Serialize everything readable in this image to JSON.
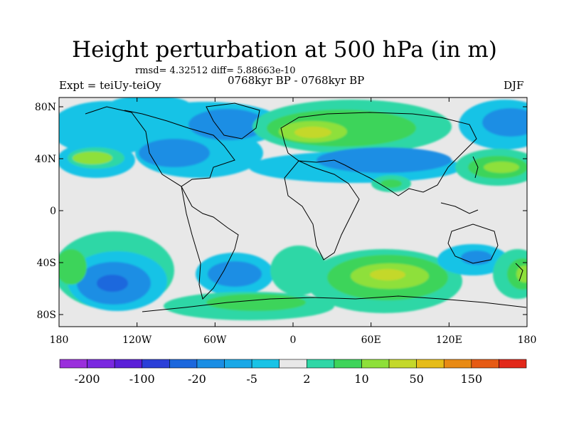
{
  "title": "Height perturbation at 500 hPa (in m)",
  "stats_line": "rmsd= 4.32512 diff= 5.88663e-10",
  "experiment": "Expt = teiUy-teiOy",
  "period": "0768kyr BP - 0768kyr BP",
  "season": "DJF",
  "y_ticks": [
    "80N",
    "40N",
    "0",
    "40S",
    "80S"
  ],
  "x_ticks": [
    "180",
    "120W",
    "60W",
    "0",
    "60E",
    "120E",
    "180"
  ],
  "colorbar": {
    "colors": [
      "#9a2fdc",
      "#7a28e0",
      "#5a1fd8",
      "#2b3fd8",
      "#1b67dd",
      "#1a8ee4",
      "#19a8e7",
      "#19c3e6",
      "#e8e8e8",
      "#2fd7a6",
      "#3ed45a",
      "#8ee03a",
      "#c4d82a",
      "#e6bc18",
      "#e88a14",
      "#e65a14",
      "#e2281a"
    ],
    "labels": [
      "-200",
      "-100",
      "-20",
      "-5",
      "2",
      "10",
      "50",
      "150"
    ]
  },
  "palette": {
    "background": "#e8e8e8",
    "light_blue": "#19c3e6",
    "mid_blue": "#1a8ee4",
    "deep_blue": "#1b67dd",
    "teal": "#2fd7a6",
    "green": "#3ed45a",
    "yellow_green": "#c4d82a"
  }
}
